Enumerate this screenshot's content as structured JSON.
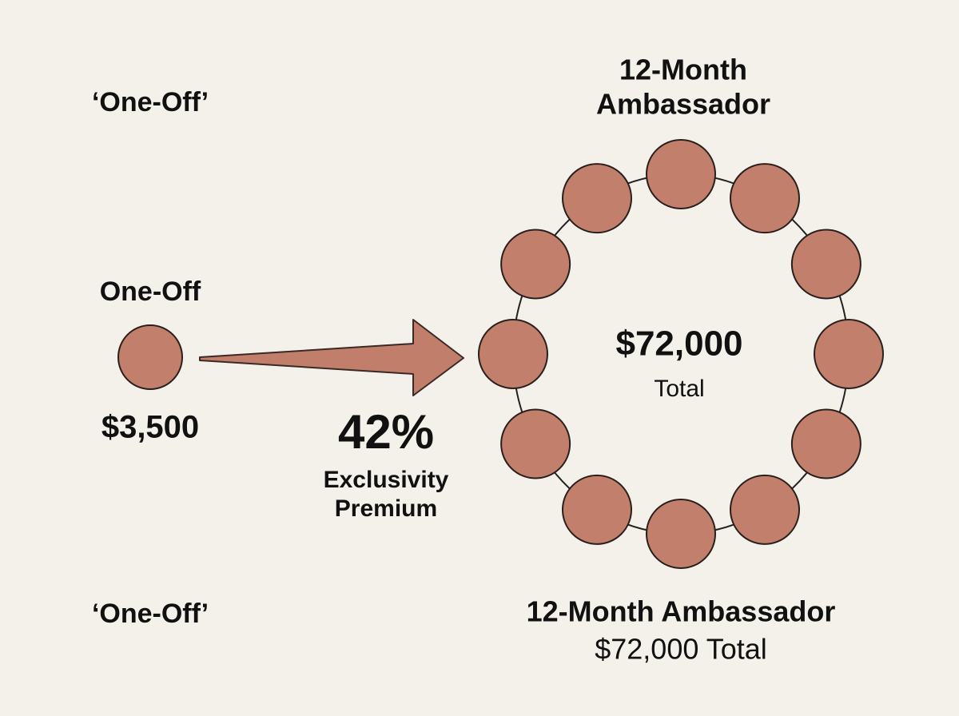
{
  "left": {
    "top_label": "‘One-Off’",
    "label": "One-Off",
    "price": "$3,500",
    "bottom_label": "‘One-Off’"
  },
  "premium": {
    "value": "42%",
    "line1": "Exclusivity",
    "line2": "Premium"
  },
  "right": {
    "title_line1": "12-Month",
    "title_line2": "Ambassador",
    "center_value": "$72,000",
    "center_caption": "Total",
    "bottom_title": "12-Month Ambassador",
    "bottom_caption": "$72,000 Total"
  }
}
